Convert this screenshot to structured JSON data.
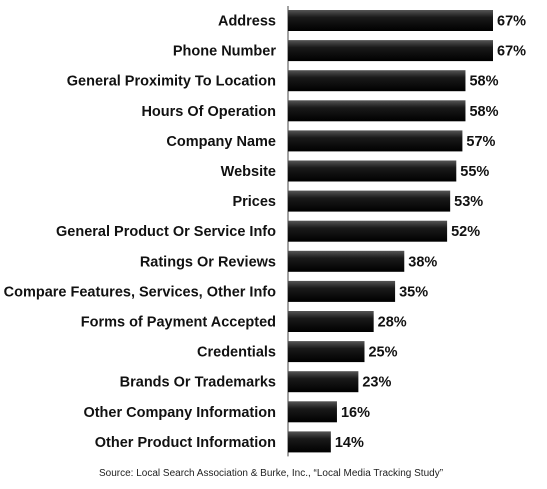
{
  "chart_data": {
    "type": "bar",
    "orientation": "horizontal",
    "categories": [
      "Address",
      "Phone Number",
      "General Proximity To Location",
      "Hours Of Operation",
      "Company Name",
      "Website",
      "Prices",
      "General Product Or Service Info",
      "Ratings Or Reviews",
      "Compare Features, Services, Other Info",
      "Forms of Payment Accepted",
      "Credentials",
      "Brands Or Trademarks",
      "Other Company Information",
      "Other Product Information"
    ],
    "values": [
      67,
      67,
      58,
      58,
      57,
      55,
      53,
      52,
      38,
      35,
      28,
      25,
      23,
      16,
      14
    ],
    "value_labels": [
      "67%",
      "67%",
      "58%",
      "58%",
      "57%",
      "55%",
      "53%",
      "52%",
      "38%",
      "35%",
      "28%",
      "25%",
      "23%",
      "16%",
      "14%"
    ],
    "xlim": [
      0,
      67
    ],
    "grid": false,
    "bar_color": "#0d0d0d"
  },
  "source_note": "Source: Local Search Association & Burke, Inc., “Local Media Tracking Study”"
}
